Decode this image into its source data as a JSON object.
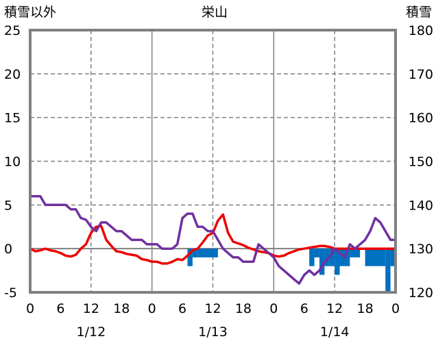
{
  "chart_data": {
    "type": "line",
    "title": "栄山",
    "left_axis_label": "積雪以外",
    "right_axis_label": "積雪",
    "left_axis": {
      "min": -5,
      "max": 25,
      "ticks": [
        25,
        20,
        15,
        10,
        5,
        0,
        -5
      ]
    },
    "right_axis": {
      "min": 120,
      "max": 180,
      "ticks": [
        180,
        170,
        160,
        150,
        140,
        130,
        120
      ]
    },
    "x_hour_ticks": [
      "0",
      "6",
      "12",
      "18",
      "0",
      "6",
      "12",
      "18",
      "0",
      "6",
      "12",
      "18",
      "0"
    ],
    "x_dates": [
      "1/12",
      "1/13",
      "1/14"
    ],
    "grid": true,
    "colors": {
      "red_series": "#ee0000",
      "purple_series": "#7030a0",
      "bar_series": "#0070c0",
      "frame": "#808080"
    },
    "series": [
      {
        "color": "red",
        "axis": "left",
        "x": [
          0,
          1,
          2,
          3,
          4,
          5,
          6,
          7,
          8,
          9,
          10,
          11,
          12,
          13,
          14,
          15,
          16,
          17,
          18,
          19,
          20,
          21,
          22,
          23,
          24,
          25,
          26,
          27,
          28,
          29,
          30,
          31,
          32,
          33,
          34,
          35,
          36,
          37,
          38,
          39,
          40,
          41,
          42,
          43,
          44,
          45,
          46,
          47,
          48,
          49,
          50,
          51,
          52,
          53,
          54,
          55,
          56,
          57,
          58,
          59,
          60,
          61,
          62,
          63,
          64,
          65,
          66,
          67,
          68,
          69,
          70,
          71,
          72
        ],
        "values": [
          0,
          -0.3,
          -0.2,
          0,
          -0.2,
          -0.3,
          -0.5,
          -0.8,
          -0.9,
          -0.7,
          0,
          0.5,
          1.8,
          2.5,
          2.6,
          1,
          0.3,
          -0.3,
          -0.4,
          -0.6,
          -0.7,
          -0.8,
          -1.2,
          -1.3,
          -1.5,
          -1.5,
          -1.7,
          -1.7,
          -1.5,
          -1.2,
          -1.3,
          -0.8,
          -0.2,
          0,
          0.7,
          1.5,
          1.8,
          3.2,
          3.9,
          1.8,
          0.8,
          0.6,
          0.4,
          0.1,
          -0.1,
          -0.3,
          -0.4,
          -0.5,
          -0.8,
          -0.9,
          -0.8,
          -0.5,
          -0.3,
          -0.1,
          0,
          0.1,
          0.2,
          0.3,
          0.3,
          0.2,
          0,
          0,
          0,
          0,
          0,
          0,
          0,
          0,
          0,
          0,
          0,
          0,
          0
        ]
      },
      {
        "color": "purple",
        "axis": "left",
        "x": [
          0,
          1,
          2,
          3,
          4,
          5,
          6,
          7,
          8,
          9,
          10,
          11,
          12,
          13,
          14,
          15,
          16,
          17,
          18,
          19,
          20,
          21,
          22,
          23,
          24,
          25,
          26,
          27,
          28,
          29,
          30,
          31,
          32,
          33,
          34,
          35,
          36,
          37,
          38,
          39,
          40,
          41,
          42,
          43,
          44,
          45,
          46,
          47,
          48,
          49,
          50,
          51,
          52,
          53,
          54,
          55,
          56,
          57,
          58,
          59,
          60,
          61,
          62,
          63,
          64,
          65,
          66,
          67,
          68,
          69,
          70,
          71,
          72
        ],
        "values": [
          6,
          6,
          6,
          5,
          5,
          5,
          5,
          5,
          4.5,
          4.5,
          3.5,
          3.3,
          2.5,
          2,
          3,
          3,
          2.5,
          2,
          2,
          1.5,
          1,
          1,
          1,
          0.5,
          0.5,
          0.5,
          0,
          0,
          0,
          0.5,
          3.5,
          4,
          4,
          2.5,
          2.5,
          2,
          2,
          1,
          0,
          -0.5,
          -1,
          -1,
          -1.5,
          -1.5,
          -1.5,
          0.5,
          0,
          -0.5,
          -1,
          -2,
          -2.5,
          -3,
          -3.5,
          -4,
          -3,
          -2.5,
          -3,
          -2.5,
          -1.5,
          -1,
          0,
          -0.5,
          -1,
          0.5,
          0,
          0.5,
          1,
          2,
          3.5,
          3,
          2,
          1,
          1
        ]
      },
      {
        "color": "blue",
        "type": "bar",
        "axis": "right",
        "base": 130,
        "bars": [
          {
            "from": 31,
            "to": 32,
            "value": 126
          },
          {
            "from": 32,
            "to": 33,
            "value": 128
          },
          {
            "from": 33,
            "to": 37,
            "value": 128
          },
          {
            "from": 55,
            "to": 56,
            "value": 126
          },
          {
            "from": 56,
            "to": 57,
            "value": 128
          },
          {
            "from": 57,
            "to": 58,
            "value": 124
          },
          {
            "from": 58,
            "to": 59,
            "value": 126
          },
          {
            "from": 59,
            "to": 60,
            "value": 126
          },
          {
            "from": 60,
            "to": 61,
            "value": 124
          },
          {
            "from": 61,
            "to": 62,
            "value": 126
          },
          {
            "from": 62,
            "to": 63,
            "value": 126
          },
          {
            "from": 63,
            "to": 65,
            "value": 128
          },
          {
            "from": 66,
            "to": 70,
            "value": 126
          },
          {
            "from": 70,
            "to": 71,
            "value": 120
          },
          {
            "from": 71,
            "to": 72,
            "value": 126
          }
        ]
      }
    ]
  }
}
